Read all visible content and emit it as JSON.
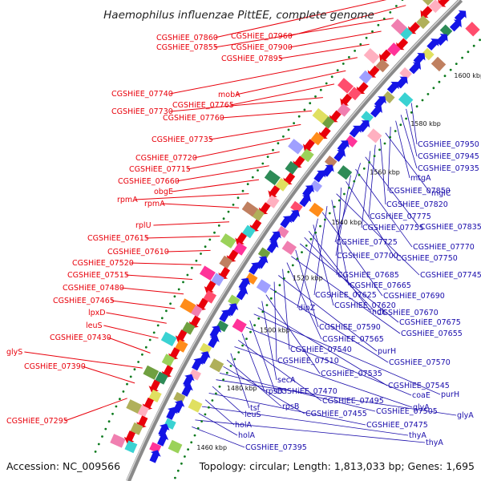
{
  "title": "Haemophilus influenzae PittEE, complete genome",
  "footer": {
    "accession": "Accession: NC_009566",
    "summary": "Topology: circular; Length: 1,813,033 bp; Genes: 1,695"
  },
  "scale_labels": [
    "1600 kbp",
    "1580 kbp",
    "1560 kbp",
    "1540 kbp",
    "1520 kbp",
    "1500 kbp",
    "1480 kbp",
    "1460 kbp"
  ],
  "colors": {
    "left_label": "#e8000b",
    "right_label": "#1a0dab",
    "backbone": "#8a8a8a",
    "tick": "#0b7a1d",
    "forward_arrow": "#e8000b",
    "reverse_arrow": "#1414e6"
  },
  "left_labels": [
    "CGSHiEE_07860",
    "CGSHiEE_07960",
    "CGSHiEE_07855",
    "CGSHiEE_07900",
    "CGSHiEE_07895",
    "CGSHiEE_07740",
    "mobA",
    "CGSHiEE_07765",
    "CGSHiEE_07730",
    "CGSHiEE_07760",
    "CGSHiEE_07735",
    "CGSHiEE_07720",
    "CGSHiEE_07715",
    "CGSHiEE_07660",
    "obgE",
    "rpmA",
    "rpmA",
    "rplU",
    "CGSHiEE_07615",
    "CGSHiEE_07610",
    "CGSHiEE_07520",
    "CGSHiEE_07515",
    "CGSHiEE_07480",
    "CGSHiEE_07465",
    "lpxD",
    "leuS",
    "CGSHiEE_07430",
    "glyS",
    "CGSHiEE_07390",
    "CGSHiEE_07295"
  ],
  "right_labels": [
    "CGSHiEE_07950",
    "CGSHiEE_07945",
    "CGSHiEE_07935",
    "mtgA",
    "CGSHiEE_07850",
    "mglC",
    "CGSHiEE_07820",
    "CGSHiEE_07775",
    "CGSHiEE_07755",
    "CGSHiEE_07835",
    "CGSHiEE_07725",
    "CGSHiEE_07770",
    "CGSHiEE_07700",
    "CGSHiEE_07750",
    "CGSHiEE_07685",
    "CGSHiEE_07745",
    "CGSHiEE_07665",
    "CGSHiEE_07625",
    "CGSHiEE_07690",
    "dipZ",
    "CGSHiEE_07620",
    "ndk",
    "CGSHiEE_07670",
    "CGSHiEE_07675",
    "CGSHiEE_07590",
    "CGSHiEE_07655",
    "CGSHiEE_07565",
    "CGSHiEE_07540",
    "purH",
    "CGSHiEE_07510",
    "CGSHiEE_07570",
    "CGSHiEE_07535",
    "secA",
    "CGSHiEE_07545",
    "purH",
    "CGSHiEE_07470",
    "coaE",
    "rpsB",
    "CGSHiEE_07495",
    "glyA",
    "tsf",
    "rpsB",
    "CGSHiEE_07455",
    "CGSHiEE_07505",
    "glyA",
    "leuS",
    "CGSHiEE_07475",
    "holA",
    "thyA",
    "holA",
    "thyA",
    "CGSHiEE_07395"
  ]
}
